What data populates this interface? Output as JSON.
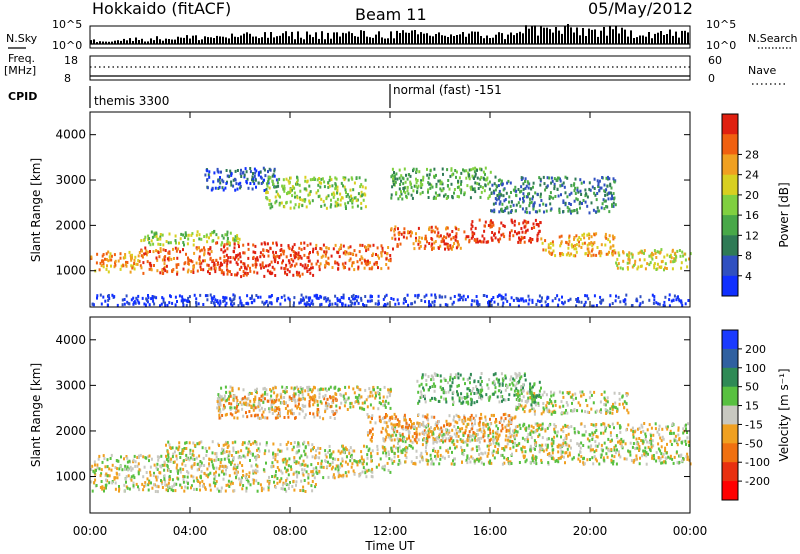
{
  "header": {
    "station": "Hokkaido (fitACF)",
    "beam": "Beam 11",
    "date": "05/May/2012"
  },
  "summary": {
    "nsky_label": "N.Sky",
    "nsearch_label": "N.Search",
    "noise_ticks_left": [
      "10^5",
      "10^0"
    ],
    "noise_ticks_right": [
      "10^5",
      "10^0"
    ],
    "freq_label": "Freq.",
    "freq_unit": "[MHz]",
    "freq_ticks": [
      "18",
      "8"
    ],
    "nave_label": "Nave",
    "nave_ticks": [
      "60",
      "0"
    ],
    "cpid_label": "CPID",
    "cpid_segments": [
      {
        "label": "themis 3300",
        "start_hour": 0
      },
      {
        "label": "normal (fast) -151",
        "start_hour": 12
      }
    ]
  },
  "colors": {
    "background_scatter": "#c8c8c0",
    "axis": "#000000"
  },
  "chart_data": [
    {
      "type": "heatmap",
      "name": "power",
      "xlabel": "Time UT",
      "ylabel": "Slant Range [km]",
      "xlim": [
        0,
        24
      ],
      "ylim": [
        200,
        4500
      ],
      "x_ticks": [
        "00:00",
        "04:00",
        "08:00",
        "12:00",
        "16:00",
        "20:00",
        "00:00"
      ],
      "y_ticks": [
        1000,
        2000,
        3000,
        4000
      ],
      "colorbar": {
        "label": "Power [dB]",
        "ticks": [
          "4",
          "8",
          "12",
          "16",
          "20",
          "24",
          "28"
        ],
        "colors": [
          "#1030ff",
          "#3050c0",
          "#2f7a55",
          "#48a848",
          "#80d040",
          "#d8d020",
          "#f0a020",
          "#f06010",
          "#e02010"
        ]
      },
      "bands": [
        {
          "t0": 0.0,
          "t1": 2.0,
          "r0": 1000,
          "r1": 1450,
          "level": 6
        },
        {
          "t0": 2.0,
          "t1": 5.0,
          "r0": 950,
          "r1": 1550,
          "level": 7
        },
        {
          "t0": 5.0,
          "t1": 9.0,
          "r0": 900,
          "r1": 1650,
          "level": 8
        },
        {
          "t0": 9.0,
          "t1": 12.0,
          "r0": 1050,
          "r1": 1600,
          "level": 7
        },
        {
          "t0": 12.0,
          "t1": 15.0,
          "r0": 1500,
          "r1": 2000,
          "level": 7
        },
        {
          "t0": 15.0,
          "t1": 18.0,
          "r0": 1650,
          "r1": 2150,
          "level": 8
        },
        {
          "t0": 18.0,
          "t1": 21.0,
          "r0": 1350,
          "r1": 1850,
          "level": 6
        },
        {
          "t0": 21.0,
          "t1": 24.0,
          "r0": 1050,
          "r1": 1500,
          "level": 5
        },
        {
          "t0": 2.0,
          "t1": 6.0,
          "r0": 1600,
          "r1": 1900,
          "level": 4
        },
        {
          "t0": 4.5,
          "t1": 7.5,
          "r0": 2800,
          "r1": 3300,
          "level": 1
        },
        {
          "t0": 7.0,
          "t1": 11.0,
          "r0": 2400,
          "r1": 3100,
          "level": 4
        },
        {
          "t0": 12.0,
          "t1": 16.0,
          "r0": 2600,
          "r1": 3300,
          "level": 3
        },
        {
          "t0": 16.0,
          "t1": 21.0,
          "r0": 2300,
          "r1": 3100,
          "level": 2
        },
        {
          "t0": 0.0,
          "t1": 24.0,
          "r0": 250,
          "r1": 500,
          "level": 0
        }
      ]
    },
    {
      "type": "heatmap",
      "name": "velocity",
      "xlabel": "Time UT",
      "ylabel": "Slant Range [km]",
      "xlim": [
        0,
        24
      ],
      "ylim": [
        200,
        4500
      ],
      "x_ticks": [
        "00:00",
        "04:00",
        "08:00",
        "12:00",
        "16:00",
        "20:00",
        "00:00"
      ],
      "y_ticks": [
        1000,
        2000,
        3000,
        4000
      ],
      "colorbar": {
        "label": "Velocity [m s⁻¹]",
        "ticks": [
          "200",
          "100",
          "50",
          "15",
          "-15",
          "-50",
          "-100",
          "-200"
        ],
        "colors": [
          "#1a3aff",
          "#3060a0",
          "#2f8a55",
          "#58c040",
          "#c8c8c0",
          "#f0a020",
          "#f07010",
          "#e83010",
          "#ff0000"
        ]
      },
      "bands": [
        {
          "t0": 0.0,
          "t1": 3.0,
          "r0": 700,
          "r1": 1500,
          "level": 4
        },
        {
          "t0": 3.0,
          "t1": 9.0,
          "r0": 700,
          "r1": 1800,
          "level": 4
        },
        {
          "t0": 9.0,
          "t1": 12.0,
          "r0": 1000,
          "r1": 1700,
          "level": 4
        },
        {
          "t0": 12.0,
          "t1": 24.0,
          "r0": 1300,
          "r1": 2200,
          "level": 4
        },
        {
          "t0": 5.0,
          "t1": 12.0,
          "r0": 2500,
          "r1": 3000,
          "level": 4
        },
        {
          "t0": 17.0,
          "t1": 21.5,
          "r0": 2400,
          "r1": 2900,
          "level": 4
        },
        {
          "t0": 13.0,
          "t1": 18.0,
          "r0": 2600,
          "r1": 3300,
          "level": 3
        },
        {
          "t0": 11.0,
          "t1": 17.0,
          "r0": 1800,
          "r1": 2400,
          "level": 5
        },
        {
          "t0": 5.0,
          "t1": 10.0,
          "r0": 2300,
          "r1": 2800,
          "level": 5
        }
      ]
    }
  ]
}
